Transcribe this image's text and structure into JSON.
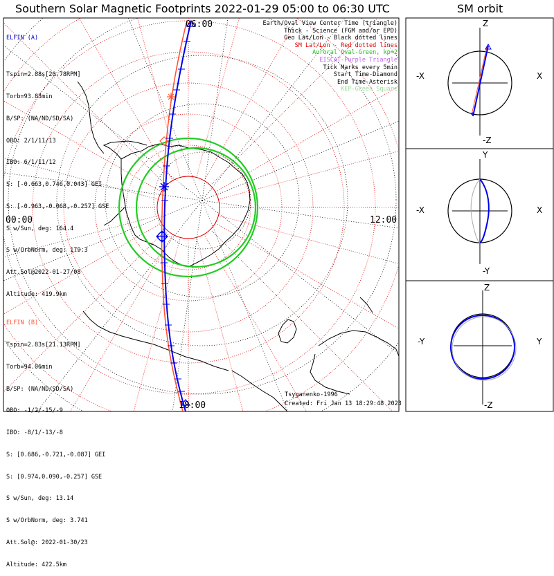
{
  "header": {
    "title": "Southern Solar Magnetic Footprints 2022-01-29 05:00 to 06:30 UTC",
    "orbit_title": "SM orbit"
  },
  "map": {
    "mlt_labels": {
      "top": "06:00",
      "left": "00:00",
      "right": "12:00",
      "bottom": "18:00"
    },
    "colors": {
      "frame": "#000000",
      "geo_grid": "#000000",
      "sm_grid": "#dd0000",
      "aurora": "#22cc22",
      "sat_a": "#0000ee",
      "sat_b": "#ff5533"
    }
  },
  "sat_a": {
    "name": "ELFIN (A)",
    "lines": [
      "Tspin=2.88s[20.78RPM]",
      "Torb=93.83min",
      "B/SP: (NA/ND/SD/SA)",
      "OBO: 2/1/11/13",
      "IBO: 6/1/11/12",
      "S: [-0.663,0.746,0.043] GEI",
      "S: [-0.963,-0.068,-0.257] GSE",
      "S w/Sun, deg: 164.4",
      "S w/OrbNorm, deg: 179.3",
      "Att.Sol@2022-01-27/08",
      "Altitude: 419.9km"
    ]
  },
  "sat_b": {
    "name": "ELFIN (B)",
    "lines": [
      "Tspin=2.83s[21.13RPM]",
      "Torb=94.06min",
      "B/SP: (NA/ND/SD/SA)",
      "OBO: -1/2/-15/-9",
      "IBO: -8/1/-13/-8",
      "S: [0.686,-0.721,-0.087] GEI",
      "S: [0.974,0.090,-0.257] GSE",
      "S w/Sun, deg: 13.14",
      "S w/OrbNorm, deg: 3.741",
      "Att.Sol@: 2022-01-30/23",
      "Altitude: 422.5km"
    ]
  },
  "legend": [
    {
      "text": "Earth/Oval View Center Time (triangle)",
      "color": "#000000"
    },
    {
      "text": "Thick - Science (FGM and/or EPD)",
      "color": "#000000"
    },
    {
      "text": "Geo Lat/Lon - Black dotted lines",
      "color": "#000000"
    },
    {
      "text": "SM Lat/Lon - Red dotted lines",
      "color": "#dd0000"
    },
    {
      "text": "Auroral Oval-Green, kp=2",
      "color": "#22bb22"
    },
    {
      "text": "EISCAT-Purple Triangle",
      "color": "#bb66ee"
    },
    {
      "text": "Tick Marks every 5min",
      "color": "#000000"
    },
    {
      "text": "Start Time-Diamond",
      "color": "#000000"
    },
    {
      "text": "End Time-Asterisk",
      "color": "#000000"
    },
    {
      "text": "KEP-Green Square",
      "color": "#99dd99"
    }
  ],
  "footer": {
    "model": "Tsyganenko-1996",
    "created": "Created: Fri Jan 13 18:29:48 2023"
  },
  "orbit_panels": [
    {
      "id": "xz",
      "top": "Z",
      "bottom": "-Z",
      "left": "-X",
      "right": "X"
    },
    {
      "id": "xy",
      "top": "Y",
      "bottom": "-Y",
      "left": "-X",
      "right": "X"
    },
    {
      "id": "yz",
      "top": "Z",
      "bottom": "-Z",
      "left": "-Y",
      "right": "Y"
    }
  ],
  "chart_data": {
    "type": "polar map",
    "title": "Southern Solar Magnetic Footprints 2022-01-29 05:00 to 06:30 UTC",
    "projection": "south polar, SM coordinates",
    "tick_interval_min": 5,
    "kp": 2,
    "mlt_labels": [
      "00:00",
      "06:00",
      "12:00",
      "18:00"
    ],
    "series": [
      {
        "name": "ELFIN (A)",
        "color": "#0000ee"
      },
      {
        "name": "ELFIN (B)",
        "color": "#ff5533"
      }
    ]
  }
}
